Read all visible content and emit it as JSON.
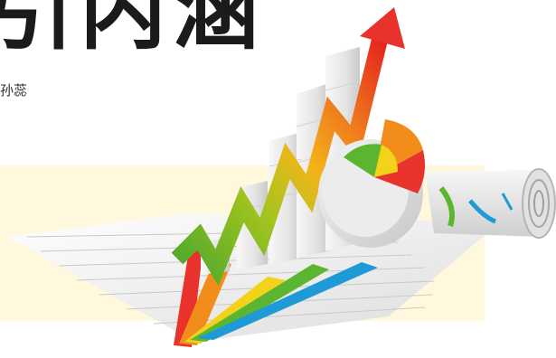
{
  "headline": {
    "text": "引内涵"
  },
  "byline": {
    "text": "孙蕊"
  },
  "illustration": {
    "name": "business-growth-chart-illustration",
    "colors": {
      "panel": "#fff8dc",
      "arrow_red": "#e8322b",
      "orange": "#f28c1b",
      "yellow": "#f3d31a",
      "green": "#5cb531",
      "blue": "#1e9ad6",
      "paper": "#f4f4f4",
      "bars": "#e9e9e9"
    }
  }
}
